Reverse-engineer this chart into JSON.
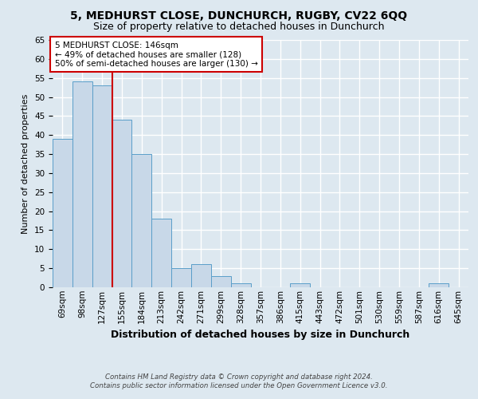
{
  "title": "5, MEDHURST CLOSE, DUNCHURCH, RUGBY, CV22 6QQ",
  "subtitle": "Size of property relative to detached houses in Dunchurch",
  "xlabel": "Distribution of detached houses by size in Dunchurch",
  "ylabel": "Number of detached properties",
  "categories": [
    "69sqm",
    "98sqm",
    "127sqm",
    "155sqm",
    "184sqm",
    "213sqm",
    "242sqm",
    "271sqm",
    "299sqm",
    "328sqm",
    "357sqm",
    "386sqm",
    "415sqm",
    "443sqm",
    "472sqm",
    "501sqm",
    "530sqm",
    "559sqm",
    "587sqm",
    "616sqm",
    "645sqm"
  ],
  "values": [
    39,
    54,
    53,
    44,
    35,
    18,
    5,
    6,
    3,
    1,
    0,
    0,
    1,
    0,
    0,
    0,
    0,
    0,
    0,
    1,
    0
  ],
  "bar_color": "#c8d8e8",
  "bar_edgecolor": "#5a9ec9",
  "subject_line_label": "5 MEDHURST CLOSE: 146sqm",
  "annotation_line1": "← 49% of detached houses are smaller (128)",
  "annotation_line2": "50% of semi-detached houses are larger (130) →",
  "annotation_box_color": "#ffffff",
  "annotation_box_edgecolor": "#cc0000",
  "vline_color": "#cc0000",
  "vline_x_index": 2.5,
  "ylim": [
    0,
    65
  ],
  "yticks": [
    0,
    5,
    10,
    15,
    20,
    25,
    30,
    35,
    40,
    45,
    50,
    55,
    60,
    65
  ],
  "footnote1": "Contains HM Land Registry data © Crown copyright and database right 2024.",
  "footnote2": "Contains public sector information licensed under the Open Government Licence v3.0.",
  "bg_color": "#dde8f0",
  "grid_color": "#ffffff",
  "title_fontsize": 10,
  "subtitle_fontsize": 9,
  "xlabel_fontsize": 9,
  "ylabel_fontsize": 8,
  "tick_fontsize": 7.5,
  "annotation_fontsize": 7.5
}
